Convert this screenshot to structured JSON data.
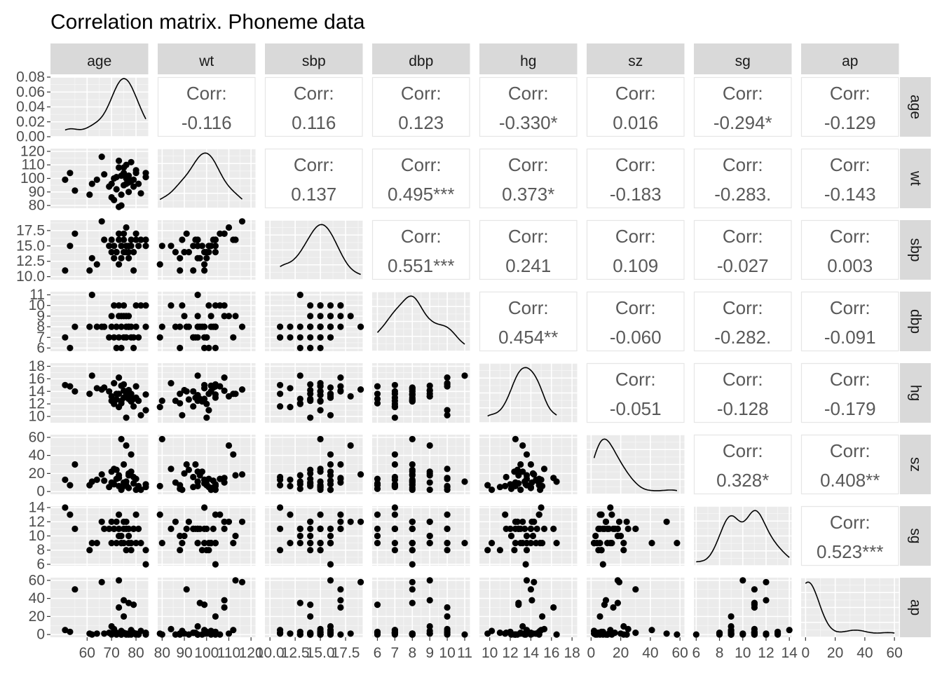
{
  "title": "Correlation matrix. Phoneme data",
  "chart_data": {
    "type": "scatter",
    "title": "Correlation matrix. Phoneme data",
    "variables": [
      "age",
      "wt",
      "sbp",
      "dbp",
      "hg",
      "sz",
      "sg",
      "ap"
    ],
    "layout": "pairs matrix: density on diagonal, scatter below diagonal, correlation text above diagonal",
    "grid": true,
    "axes": {
      "age": {
        "range": [
          45,
          85
        ],
        "ticks": [
          60,
          70,
          80
        ],
        "diag_y_ticks": [
          "0.00",
          "0.02",
          "0.04",
          "0.06",
          "0.08"
        ],
        "diag_y_range": [
          0,
          0.08
        ]
      },
      "wt": {
        "range": [
          78,
          122
        ],
        "ticks": [
          80,
          90,
          100,
          110,
          120
        ],
        "row_ticks": [
          80,
          90,
          100,
          110,
          120
        ]
      },
      "sbp": {
        "range": [
          9.5,
          19.2
        ],
        "ticks": [
          "10.0",
          "12.5",
          "15.0",
          "17.5"
        ],
        "row_ticks": [
          "10.0",
          "12.5",
          "15.0",
          "17.5"
        ]
      },
      "dbp": {
        "range": [
          5.7,
          11.3
        ],
        "ticks": [
          6,
          7,
          8,
          9,
          10,
          11
        ],
        "row_ticks": [
          6,
          7,
          8,
          9,
          10,
          11
        ]
      },
      "hg": {
        "range": [
          9,
          18.5
        ],
        "ticks": [
          10,
          12,
          14,
          16,
          18
        ],
        "row_ticks": [
          10,
          12,
          14,
          16,
          18
        ]
      },
      "sz": {
        "range": [
          -3,
          63
        ],
        "ticks": [
          0,
          20,
          40,
          60
        ],
        "row_ticks": [
          0,
          20,
          40,
          60
        ]
      },
      "sg": {
        "range": [
          5.8,
          14.2
        ],
        "ticks": [
          6,
          8,
          10,
          12,
          14
        ],
        "row_ticks": [
          6,
          8,
          10,
          12,
          14
        ]
      },
      "ap": {
        "range": [
          -3,
          63
        ],
        "ticks": [
          0,
          20,
          40,
          60
        ],
        "row_ticks": [
          0,
          20,
          40,
          60
        ]
      }
    },
    "correlations": [
      {
        "row": "age",
        "col": "wt",
        "label": "Corr:",
        "value": "-0.116"
      },
      {
        "row": "age",
        "col": "sbp",
        "label": "Corr:",
        "value": "0.116"
      },
      {
        "row": "age",
        "col": "dbp",
        "label": "Corr:",
        "value": "0.123"
      },
      {
        "row": "age",
        "col": "hg",
        "label": "Corr:",
        "value": "-0.330*"
      },
      {
        "row": "age",
        "col": "sz",
        "label": "Corr:",
        "value": "0.016"
      },
      {
        "row": "age",
        "col": "sg",
        "label": "Corr:",
        "value": "-0.294*"
      },
      {
        "row": "age",
        "col": "ap",
        "label": "Corr:",
        "value": "-0.129"
      },
      {
        "row": "wt",
        "col": "sbp",
        "label": "Corr:",
        "value": "0.137"
      },
      {
        "row": "wt",
        "col": "dbp",
        "label": "Corr:",
        "value": "0.495***"
      },
      {
        "row": "wt",
        "col": "hg",
        "label": "Corr:",
        "value": "0.373*"
      },
      {
        "row": "wt",
        "col": "sz",
        "label": "Corr:",
        "value": "-0.183"
      },
      {
        "row": "wt",
        "col": "sg",
        "label": "Corr:",
        "value": "-0.283."
      },
      {
        "row": "wt",
        "col": "ap",
        "label": "Corr:",
        "value": "-0.143"
      },
      {
        "row": "sbp",
        "col": "dbp",
        "label": "Corr:",
        "value": "0.551***"
      },
      {
        "row": "sbp",
        "col": "hg",
        "label": "Corr:",
        "value": "0.241"
      },
      {
        "row": "sbp",
        "col": "sz",
        "label": "Corr:",
        "value": "0.109"
      },
      {
        "row": "sbp",
        "col": "sg",
        "label": "Corr:",
        "value": "-0.027"
      },
      {
        "row": "sbp",
        "col": "ap",
        "label": "Corr:",
        "value": "0.003"
      },
      {
        "row": "dbp",
        "col": "hg",
        "label": "Corr:",
        "value": "0.454**"
      },
      {
        "row": "dbp",
        "col": "sz",
        "label": "Corr:",
        "value": "-0.060"
      },
      {
        "row": "dbp",
        "col": "sg",
        "label": "Corr:",
        "value": "-0.282."
      },
      {
        "row": "dbp",
        "col": "ap",
        "label": "Corr:",
        "value": "-0.091"
      },
      {
        "row": "hg",
        "col": "sz",
        "label": "Corr:",
        "value": "-0.051"
      },
      {
        "row": "hg",
        "col": "sg",
        "label": "Corr:",
        "value": "-0.128"
      },
      {
        "row": "hg",
        "col": "ap",
        "label": "Corr:",
        "value": "-0.179"
      },
      {
        "row": "sz",
        "col": "sg",
        "label": "Corr:",
        "value": "0.328*"
      },
      {
        "row": "sz",
        "col": "ap",
        "label": "Corr:",
        "value": "0.408**"
      },
      {
        "row": "sg",
        "col": "ap",
        "label": "Corr:",
        "value": "0.523***"
      }
    ],
    "records": [
      {
        "age": 51,
        "wt": 99,
        "sbp": 11,
        "dbp": 7,
        "hg": 15.0,
        "sz": 13,
        "sg": 14,
        "ap": 5
      },
      {
        "age": 53,
        "wt": 104,
        "sbp": 15,
        "dbp": 6,
        "hg": 14.8,
        "sz": 7,
        "sg": 13,
        "ap": 3
      },
      {
        "age": 55,
        "wt": 91,
        "sbp": 17,
        "dbp": 8,
        "hg": 14.0,
        "sz": 30,
        "sg": 11,
        "ap": 50
      },
      {
        "age": 61,
        "wt": 88,
        "sbp": 11,
        "dbp": 8,
        "hg": 13.6,
        "sz": 7,
        "sg": 8,
        "ap": 1
      },
      {
        "age": 62,
        "wt": 96,
        "sbp": 13,
        "dbp": 11,
        "hg": 16.5,
        "sz": 11,
        "sg": 9,
        "ap": 0
      },
      {
        "age": 64,
        "wt": 99,
        "sbp": 12,
        "dbp": 8,
        "hg": 14.5,
        "sz": 13,
        "sg": 9,
        "ap": 1
      },
      {
        "age": 66,
        "wt": 116,
        "sbp": 19,
        "dbp": 8,
        "hg": 14.3,
        "sz": 19,
        "sg": 12,
        "ap": 58
      },
      {
        "age": 67,
        "wt": 103,
        "sbp": 16,
        "dbp": 8,
        "hg": 14.6,
        "sz": 12,
        "sg": 11,
        "ap": 1
      },
      {
        "age": 69,
        "wt": 94,
        "sbp": 15,
        "dbp": 7,
        "hg": 14.0,
        "sz": 5,
        "sg": 11,
        "ap": 2
      },
      {
        "age": 70,
        "wt": 96,
        "sbp": 16,
        "dbp": 9,
        "hg": 13.2,
        "sz": 22,
        "sg": 9,
        "ap": 9
      },
      {
        "age": 70,
        "wt": 86,
        "sbp": 14,
        "dbp": 8,
        "hg": 12.5,
        "sz": 10,
        "sg": 12,
        "ap": 0
      },
      {
        "age": 71,
        "wt": 100,
        "sbp": 13,
        "dbp": 7,
        "hg": 12.0,
        "sz": 8,
        "sg": 11,
        "ap": 3
      },
      {
        "age": 71,
        "wt": 84,
        "sbp": 15,
        "dbp": 10,
        "hg": 15.3,
        "sz": 25,
        "sg": 11,
        "ap": 6
      },
      {
        "age": 72,
        "wt": 101,
        "sbp": 14,
        "dbp": 6,
        "hg": 13.6,
        "sz": 14,
        "sg": 9,
        "ap": 2
      },
      {
        "age": 72,
        "wt": 92,
        "sbp": 14,
        "dbp": 8,
        "hg": 12.7,
        "sz": 24,
        "sg": 12,
        "ap": 0
      },
      {
        "age": 73,
        "wt": 108,
        "sbp": 17,
        "dbp": 10,
        "hg": 16.2,
        "sz": 15,
        "sg": 11,
        "ap": 30
      },
      {
        "age": 73,
        "wt": 79,
        "sbp": 12,
        "dbp": 7,
        "hg": 11.5,
        "sz": 6,
        "sg": 13,
        "ap": 1
      },
      {
        "age": 73,
        "wt": 113,
        "sbp": 16,
        "dbp": 9,
        "hg": 13.6,
        "sz": 18,
        "sg": 10,
        "ap": 60
      },
      {
        "age": 74,
        "wt": 88,
        "sbp": 13,
        "dbp": 6,
        "hg": 12.1,
        "sz": 3,
        "sg": 10,
        "ap": 0
      },
      {
        "age": 74,
        "wt": 102,
        "sbp": 15,
        "dbp": 9,
        "hg": 14.9,
        "sz": 2,
        "sg": 9,
        "ap": 4
      },
      {
        "age": 74,
        "wt": 80,
        "sbp": 15,
        "dbp": 8,
        "hg": 12.5,
        "sz": 58,
        "sg": 9,
        "ap": 0
      },
      {
        "age": 75,
        "wt": 95,
        "sbp": 16,
        "dbp": 7,
        "hg": 13.0,
        "sz": 30,
        "sg": 11,
        "ap": 2
      },
      {
        "age": 75,
        "wt": 108,
        "sbp": 17,
        "dbp": 9,
        "hg": 14.1,
        "sz": 10,
        "sg": 12,
        "ap": 38
      },
      {
        "age": 75,
        "wt": 104,
        "sbp": 14,
        "dbp": 10,
        "hg": 15.1,
        "sz": 6,
        "sg": 9,
        "ap": 20
      },
      {
        "age": 76,
        "wt": 96,
        "sbp": 15,
        "dbp": 8,
        "hg": 13.4,
        "sz": 11,
        "sg": 11,
        "ap": 0
      },
      {
        "age": 76,
        "wt": 100,
        "sbp": 14,
        "dbp": 7,
        "hg": 9.8,
        "sz": 7,
        "sg": 8,
        "ap": 1
      },
      {
        "age": 76,
        "wt": 110,
        "sbp": 18,
        "dbp": 9,
        "hg": 13.2,
        "sz": 51,
        "sg": 12,
        "ap": 1
      },
      {
        "age": 77,
        "wt": 102,
        "sbp": 15,
        "dbp": 8,
        "hg": 14.0,
        "sz": 4,
        "sg": 9,
        "ap": 0
      },
      {
        "age": 77,
        "wt": 97,
        "sbp": 13,
        "dbp": 8,
        "hg": 12.8,
        "sz": 18,
        "sg": 11,
        "ap": 35
      },
      {
        "age": 77,
        "wt": 90,
        "sbp": 14,
        "dbp": 9,
        "hg": 14.2,
        "sz": 20,
        "sg": 10,
        "ap": 1
      },
      {
        "age": 78,
        "wt": 112,
        "sbp": 16,
        "dbp": 7,
        "hg": 13.6,
        "sz": 41,
        "sg": 9,
        "ap": 5
      },
      {
        "age": 78,
        "wt": 98,
        "sbp": 15,
        "dbp": 8,
        "hg": 12.4,
        "sz": 22,
        "sg": 8,
        "ap": 0
      },
      {
        "age": 79,
        "wt": 99,
        "sbp": 14,
        "dbp": 6,
        "hg": 12.8,
        "sz": 9,
        "sg": 11,
        "ap": 33
      },
      {
        "age": 79,
        "wt": 94,
        "sbp": 11,
        "dbp": 7,
        "hg": 11.6,
        "sz": 16,
        "sg": 11,
        "ap": 2
      },
      {
        "age": 80,
        "wt": 104,
        "sbp": 16,
        "dbp": 8,
        "hg": 13.0,
        "sz": 2,
        "sg": 9,
        "ap": 1
      },
      {
        "age": 80,
        "wt": 106,
        "sbp": 17,
        "dbp": 10,
        "hg": 14.8,
        "sz": 14,
        "sg": 13,
        "ap": 0
      },
      {
        "age": 81,
        "wt": 96,
        "sbp": 15,
        "dbp": 7,
        "hg": 12.5,
        "sz": 6,
        "sg": 11,
        "ap": 0
      },
      {
        "age": 82,
        "wt": 89,
        "sbp": 16,
        "dbp": 10,
        "hg": 10.2,
        "sz": 2,
        "sg": 9,
        "ap": 4
      },
      {
        "age": 84,
        "wt": 104,
        "sbp": 16,
        "dbp": 8,
        "hg": 13.5,
        "sz": 8,
        "sg": 6,
        "ap": 0
      },
      {
        "age": 84,
        "wt": 101,
        "sbp": 15,
        "dbp": 10,
        "hg": 11.0,
        "sz": 5,
        "sg": 8,
        "ap": 2
      }
    ]
  }
}
